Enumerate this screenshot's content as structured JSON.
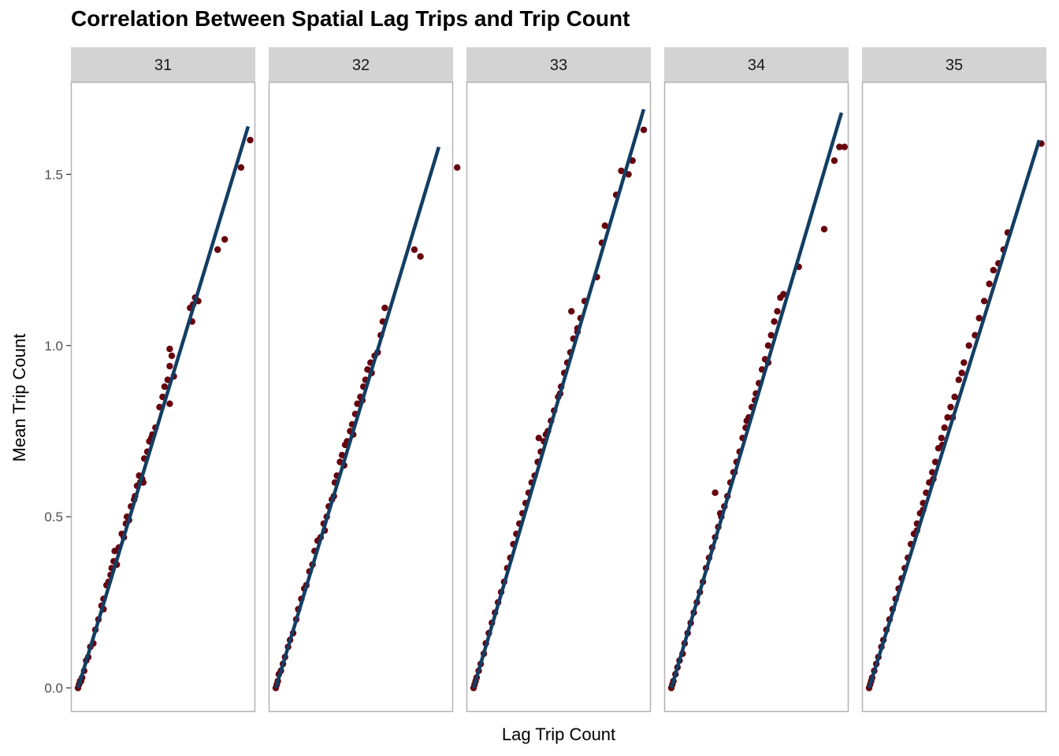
{
  "chart_data": {
    "type": "scatter",
    "title": "Correlation Between Spatial Lag Trips and Trip Count",
    "xlabel": "Lag Trip Count",
    "ylabel": "Mean Trip Count",
    "ylim": [
      -0.07,
      1.77
    ],
    "yticks": [
      0.0,
      0.5,
      1.0,
      1.5
    ],
    "ytick_labels": [
      "0.0",
      "0.5",
      "1.0",
      "1.5"
    ],
    "x_ticks_shown": false,
    "grid": false,
    "point_color": "#67000d",
    "line_color": "#133e63",
    "strip_fill": "#d3d3d3",
    "panel_border": "#b3b3b3",
    "panels": [
      {
        "label": "31",
        "xlim": [
          -0.07,
          1.74
        ],
        "fit": {
          "x": [
            0.0,
            1.67
          ],
          "y": [
            0.0,
            1.64
          ]
        },
        "points": [
          [
            0,
            0
          ],
          [
            0.01,
            0.01
          ],
          [
            0.02,
            0.02
          ],
          [
            0.03,
            0.02
          ],
          [
            0.04,
            0.03
          ],
          [
            0.06,
            0.05
          ],
          [
            0.08,
            0.08
          ],
          [
            0.1,
            0.09
          ],
          [
            0.12,
            0.12
          ],
          [
            0.15,
            0.13
          ],
          [
            0.17,
            0.17
          ],
          [
            0.2,
            0.2
          ],
          [
            0.23,
            0.24
          ],
          [
            0.25,
            0.23
          ],
          [
            0.28,
            0.3
          ],
          [
            0.3,
            0.31
          ],
          [
            0.32,
            0.33
          ],
          [
            0.35,
            0.37
          ],
          [
            0.38,
            0.36
          ],
          [
            0.4,
            0.41
          ],
          [
            0.43,
            0.45
          ],
          [
            0.45,
            0.44
          ],
          [
            0.48,
            0.5
          ],
          [
            0.5,
            0.49
          ],
          [
            0.52,
            0.53
          ],
          [
            0.55,
            0.55
          ],
          [
            0.58,
            0.59
          ],
          [
            0.6,
            0.62
          ],
          [
            0.63,
            0.61
          ],
          [
            0.65,
            0.67
          ],
          [
            0.68,
            0.69
          ],
          [
            0.7,
            0.72
          ],
          [
            0.73,
            0.74
          ],
          [
            0.76,
            0.76
          ],
          [
            0.8,
            0.82
          ],
          [
            0.83,
            0.85
          ],
          [
            0.85,
            0.88
          ],
          [
            0.88,
            0.9
          ],
          [
            0.9,
            0.94
          ],
          [
            0.92,
            0.97
          ],
          [
            0.9,
            0.99
          ],
          [
            0.94,
            0.91
          ],
          [
            0.9,
            0.83
          ],
          [
            1.1,
            1.11
          ],
          [
            1.13,
            1.12
          ],
          [
            1.15,
            1.14
          ],
          [
            1.12,
            1.07
          ],
          [
            1.18,
            1.13
          ],
          [
            1.37,
            1.28
          ],
          [
            1.44,
            1.31
          ],
          [
            1.6,
            1.52
          ],
          [
            1.69,
            1.6
          ],
          [
            0.36,
            0.4
          ],
          [
            0.47,
            0.48
          ],
          [
            0.56,
            0.56
          ],
          [
            0.64,
            0.6
          ],
          [
            0.25,
            0.26
          ],
          [
            0.33,
            0.35
          ],
          [
            0.72,
            0.73
          ],
          [
            0.61,
            0.6
          ]
        ]
      },
      {
        "label": "32",
        "xlim": [
          -0.07,
          1.74
        ],
        "fit": {
          "x": [
            0.0,
            1.6
          ],
          "y": [
            0.0,
            1.58
          ]
        },
        "points": [
          [
            0,
            0
          ],
          [
            0.01,
            0.01
          ],
          [
            0.02,
            0.02
          ],
          [
            0.03,
            0.04
          ],
          [
            0.05,
            0.05
          ],
          [
            0.07,
            0.07
          ],
          [
            0.09,
            0.09
          ],
          [
            0.12,
            0.12
          ],
          [
            0.14,
            0.14
          ],
          [
            0.17,
            0.16
          ],
          [
            0.2,
            0.2
          ],
          [
            0.22,
            0.23
          ],
          [
            0.25,
            0.26
          ],
          [
            0.28,
            0.29
          ],
          [
            0.3,
            0.3
          ],
          [
            0.33,
            0.34
          ],
          [
            0.36,
            0.36
          ],
          [
            0.38,
            0.4
          ],
          [
            0.41,
            0.43
          ],
          [
            0.44,
            0.44
          ],
          [
            0.47,
            0.48
          ],
          [
            0.5,
            0.5
          ],
          [
            0.52,
            0.53
          ],
          [
            0.55,
            0.55
          ],
          [
            0.58,
            0.6
          ],
          [
            0.6,
            0.62
          ],
          [
            0.63,
            0.66
          ],
          [
            0.65,
            0.68
          ],
          [
            0.68,
            0.71
          ],
          [
            0.7,
            0.72
          ],
          [
            0.73,
            0.75
          ],
          [
            0.75,
            0.77
          ],
          [
            0.78,
            0.8
          ],
          [
            0.8,
            0.83
          ],
          [
            0.83,
            0.85
          ],
          [
            0.86,
            0.88
          ],
          [
            0.88,
            0.9
          ],
          [
            0.9,
            0.93
          ],
          [
            0.93,
            0.95
          ],
          [
            0.97,
            0.97
          ],
          [
            1.0,
            0.98
          ],
          [
            1.03,
            1.03
          ],
          [
            1.05,
            1.07
          ],
          [
            1.07,
            1.11
          ],
          [
            1.36,
            1.28
          ],
          [
            1.42,
            1.26
          ],
          [
            1.78,
            1.52
          ],
          [
            0.48,
            0.46
          ],
          [
            0.57,
            0.56
          ],
          [
            0.67,
            0.65
          ],
          [
            0.76,
            0.74
          ],
          [
            0.85,
            0.84
          ],
          [
            0.94,
            0.92
          ]
        ]
      },
      {
        "label": "33",
        "xlim": [
          -0.07,
          1.74
        ],
        "fit": {
          "x": [
            0.0,
            1.67
          ],
          "y": [
            0.0,
            1.69
          ]
        },
        "points": [
          [
            0,
            0
          ],
          [
            0.01,
            0.01
          ],
          [
            0.02,
            0.02
          ],
          [
            0.03,
            0.03
          ],
          [
            0.05,
            0.05
          ],
          [
            0.07,
            0.07
          ],
          [
            0.1,
            0.1
          ],
          [
            0.12,
            0.13
          ],
          [
            0.15,
            0.16
          ],
          [
            0.18,
            0.19
          ],
          [
            0.21,
            0.22
          ],
          [
            0.24,
            0.25
          ],
          [
            0.27,
            0.28
          ],
          [
            0.3,
            0.31
          ],
          [
            0.33,
            0.35
          ],
          [
            0.36,
            0.38
          ],
          [
            0.39,
            0.42
          ],
          [
            0.42,
            0.45
          ],
          [
            0.45,
            0.48
          ],
          [
            0.48,
            0.51
          ],
          [
            0.51,
            0.54
          ],
          [
            0.54,
            0.57
          ],
          [
            0.57,
            0.6
          ],
          [
            0.6,
            0.62
          ],
          [
            0.63,
            0.66
          ],
          [
            0.66,
            0.69
          ],
          [
            0.69,
            0.72
          ],
          [
            0.73,
            0.75
          ],
          [
            0.76,
            0.78
          ],
          [
            0.79,
            0.81
          ],
          [
            0.83,
            0.85
          ],
          [
            0.86,
            0.88
          ],
          [
            0.89,
            0.92
          ],
          [
            0.92,
            0.95
          ],
          [
            0.95,
            0.98
          ],
          [
            0.98,
            1.02
          ],
          [
            1.02,
            1.05
          ],
          [
            1.05,
            1.08
          ],
          [
            1.09,
            1.13
          ],
          [
            0.96,
            1.1
          ],
          [
            0.64,
            0.73
          ],
          [
            1.21,
            1.2
          ],
          [
            1.26,
            1.3
          ],
          [
            1.29,
            1.35
          ],
          [
            1.4,
            1.44
          ],
          [
            1.45,
            1.51
          ],
          [
            1.52,
            1.5
          ],
          [
            1.56,
            1.54
          ],
          [
            1.67,
            1.63
          ],
          [
            0.71,
            0.74
          ],
          [
            0.85,
            0.86
          ],
          [
            1.02,
            1.04
          ]
        ]
      },
      {
        "label": "34",
        "xlim": [
          -0.07,
          1.74
        ],
        "fit": {
          "x": [
            0.0,
            1.67
          ],
          "y": [
            0.0,
            1.68
          ]
        },
        "points": [
          [
            0,
            0
          ],
          [
            0.01,
            0.01
          ],
          [
            0.02,
            0.02
          ],
          [
            0.04,
            0.04
          ],
          [
            0.06,
            0.06
          ],
          [
            0.08,
            0.08
          ],
          [
            0.11,
            0.1
          ],
          [
            0.13,
            0.13
          ],
          [
            0.16,
            0.16
          ],
          [
            0.19,
            0.19
          ],
          [
            0.22,
            0.22
          ],
          [
            0.25,
            0.25
          ],
          [
            0.28,
            0.28
          ],
          [
            0.31,
            0.31
          ],
          [
            0.34,
            0.35
          ],
          [
            0.37,
            0.38
          ],
          [
            0.4,
            0.41
          ],
          [
            0.43,
            0.44
          ],
          [
            0.46,
            0.47
          ],
          [
            0.49,
            0.5
          ],
          [
            0.52,
            0.53
          ],
          [
            0.55,
            0.56
          ],
          [
            0.58,
            0.6
          ],
          [
            0.61,
            0.63
          ],
          [
            0.64,
            0.66
          ],
          [
            0.67,
            0.69
          ],
          [
            0.7,
            0.73
          ],
          [
            0.73,
            0.76
          ],
          [
            0.76,
            0.79
          ],
          [
            0.79,
            0.82
          ],
          [
            0.83,
            0.86
          ],
          [
            0.86,
            0.89
          ],
          [
            0.89,
            0.93
          ],
          [
            0.92,
            0.96
          ],
          [
            0.95,
            1.0
          ],
          [
            0.98,
            1.03
          ],
          [
            1.01,
            1.07
          ],
          [
            1.04,
            1.1
          ],
          [
            1.07,
            1.14
          ],
          [
            1.1,
            1.15
          ],
          [
            1.25,
            1.23
          ],
          [
            1.5,
            1.34
          ],
          [
            1.6,
            1.54
          ],
          [
            1.65,
            1.58
          ],
          [
            1.7,
            1.58
          ],
          [
            0.43,
            0.57
          ],
          [
            0.48,
            0.51
          ],
          [
            0.62,
            0.63
          ],
          [
            0.74,
            0.78
          ],
          [
            0.82,
            0.84
          ],
          [
            0.95,
            0.95
          ]
        ]
      },
      {
        "label": "35",
        "xlim": [
          -0.07,
          1.74
        ],
        "fit": {
          "x": [
            0.0,
            1.67
          ],
          "y": [
            0.0,
            1.6
          ]
        },
        "points": [
          [
            0,
            0
          ],
          [
            0.01,
            0.01
          ],
          [
            0.02,
            0.02
          ],
          [
            0.03,
            0.03
          ],
          [
            0.05,
            0.05
          ],
          [
            0.07,
            0.07
          ],
          [
            0.09,
            0.09
          ],
          [
            0.12,
            0.12
          ],
          [
            0.14,
            0.14
          ],
          [
            0.17,
            0.17
          ],
          [
            0.2,
            0.2
          ],
          [
            0.23,
            0.23
          ],
          [
            0.26,
            0.26
          ],
          [
            0.29,
            0.29
          ],
          [
            0.32,
            0.32
          ],
          [
            0.35,
            0.35
          ],
          [
            0.38,
            0.38
          ],
          [
            0.41,
            0.42
          ],
          [
            0.44,
            0.45
          ],
          [
            0.47,
            0.48
          ],
          [
            0.5,
            0.51
          ],
          [
            0.53,
            0.54
          ],
          [
            0.56,
            0.57
          ],
          [
            0.59,
            0.6
          ],
          [
            0.62,
            0.63
          ],
          [
            0.65,
            0.66
          ],
          [
            0.68,
            0.7
          ],
          [
            0.71,
            0.73
          ],
          [
            0.74,
            0.76
          ],
          [
            0.77,
            0.79
          ],
          [
            0.8,
            0.82
          ],
          [
            0.84,
            0.85
          ],
          [
            0.88,
            0.9
          ],
          [
            0.93,
            0.95
          ],
          [
            0.98,
            1.0
          ],
          [
            1.04,
            1.03
          ],
          [
            1.08,
            1.08
          ],
          [
            1.13,
            1.13
          ],
          [
            1.18,
            1.18
          ],
          [
            1.22,
            1.22
          ],
          [
            1.27,
            1.24
          ],
          [
            1.32,
            1.28
          ],
          [
            1.36,
            1.33
          ],
          [
            1.69,
            1.59
          ],
          [
            0.63,
            0.61
          ],
          [
            0.72,
            0.71
          ],
          [
            0.82,
            0.79
          ],
          [
            0.91,
            0.92
          ],
          [
            0.47,
            0.46
          ],
          [
            0.53,
            0.52
          ]
        ]
      }
    ]
  }
}
